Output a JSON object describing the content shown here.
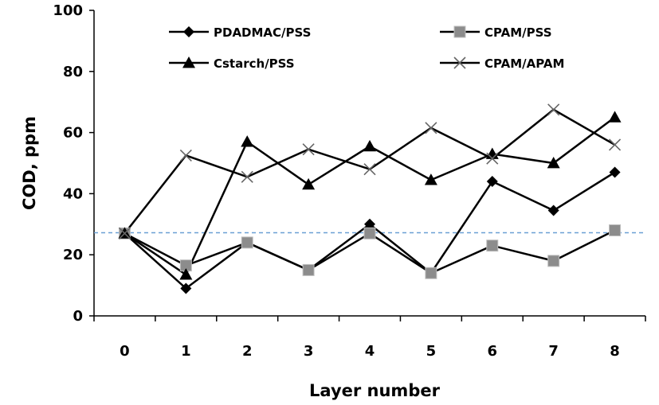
{
  "chart_data": {
    "type": "line",
    "title": "",
    "xlabel": "Layer number",
    "ylabel": "COD, ppm",
    "x": [
      0,
      1,
      2,
      3,
      4,
      5,
      6,
      7,
      8
    ],
    "xlim": [
      -0.5,
      8.5
    ],
    "ylim": [
      0,
      100
    ],
    "yticks": [
      0,
      20,
      40,
      60,
      80,
      100
    ],
    "xticks": [
      0,
      1,
      2,
      3,
      4,
      5,
      6,
      7,
      8
    ],
    "grid": false,
    "legend_position": "top",
    "series": [
      {
        "name": "PDADMAC/PSS",
        "marker": "diamond",
        "values": [
          27,
          9,
          24,
          15,
          30,
          14,
          44,
          34.5,
          47
        ]
      },
      {
        "name": "CPAM/PSS",
        "marker": "square",
        "values": [
          27,
          16.5,
          24,
          15,
          27,
          14,
          23,
          18,
          28
        ]
      },
      {
        "name": "Cstarch/PSS",
        "marker": "triangle",
        "values": [
          27,
          13.5,
          57,
          43,
          55.5,
          44.5,
          53,
          50,
          65
        ]
      },
      {
        "name": "CPAM/APAM",
        "marker": "x",
        "values": [
          27,
          52.5,
          45.5,
          54.5,
          48,
          61.5,
          51.5,
          67.5,
          56
        ]
      }
    ],
    "reference_line": {
      "y": 27.2,
      "style": "dashed",
      "color": "#6a9fd4"
    },
    "colors": {
      "line": "#000000",
      "square_fill": "#8c8c8c",
      "x_marker": "#666666"
    }
  }
}
